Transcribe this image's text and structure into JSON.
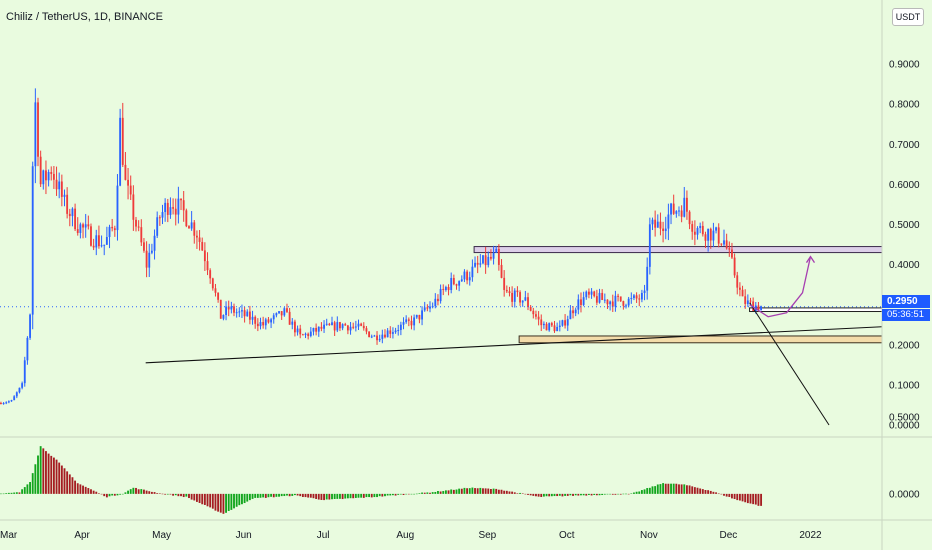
{
  "symbol_title": "Chiliz / TetherUS, 1D, BINANCE",
  "currency": "USDT",
  "colors": {
    "background": "#e9fbdf",
    "up": "#2962ff",
    "down": "#ef3a3a",
    "hist_up": "#12a51d",
    "hist_down": "#a51d22",
    "price_tag": "#1e5bff",
    "zone_pink": "#dccfe8",
    "zone_tan": "#f3dcaa",
    "projection": "#a63fb0"
  },
  "chart_data": [
    {
      "type": "candlestick",
      "y_ticks": [
        "0.9000",
        "0.8000",
        "0.7000",
        "0.6000",
        "0.5000",
        "0.4000",
        "0.2000",
        "0.1000",
        "0.0000"
      ],
      "x_ticks": [
        "Mar",
        "Apr",
        "May",
        "Jun",
        "Jul",
        "Aug",
        "Sep",
        "Oct",
        "Nov",
        "Dec",
        "2022"
      ],
      "ylim": [
        -0.03,
        1.06
      ],
      "xlim": [
        "2021-03-01",
        "2022-01-28"
      ],
      "last_price": "0.2950",
      "countdown": "05:36:51",
      "anchors": [
        [
          "2021-03-01",
          0.055
        ],
        [
          "2021-03-05",
          0.06
        ],
        [
          "2021-03-09",
          0.1
        ],
        [
          "2021-03-11",
          0.22
        ],
        [
          "2021-03-12",
          0.28
        ],
        [
          "2021-03-13",
          0.65
        ],
        [
          "2021-03-14",
          0.8
        ],
        [
          "2021-03-16",
          0.6
        ],
        [
          "2021-03-20",
          0.64
        ],
        [
          "2021-03-25",
          0.55
        ],
        [
          "2021-03-30",
          0.5
        ],
        [
          "2021-04-04",
          0.47
        ],
        [
          "2021-04-09",
          0.45
        ],
        [
          "2021-04-13",
          0.5
        ],
        [
          "2021-04-15",
          0.75
        ],
        [
          "2021-04-17",
          0.6
        ],
        [
          "2021-04-21",
          0.5
        ],
        [
          "2021-04-25",
          0.4
        ],
        [
          "2021-04-30",
          0.52
        ],
        [
          "2021-05-04",
          0.56
        ],
        [
          "2021-05-09",
          0.53
        ],
        [
          "2021-05-14",
          0.48
        ],
        [
          "2021-05-19",
          0.38
        ],
        [
          "2021-05-23",
          0.27
        ],
        [
          "2021-05-26",
          0.29
        ],
        [
          "2021-06-02",
          0.27
        ],
        [
          "2021-06-08",
          0.25
        ],
        [
          "2021-06-16",
          0.28
        ],
        [
          "2021-06-22",
          0.22
        ],
        [
          "2021-06-30",
          0.24
        ],
        [
          "2021-07-08",
          0.25
        ],
        [
          "2021-07-15",
          0.24
        ],
        [
          "2021-07-20",
          0.22
        ],
        [
          "2021-07-28",
          0.24
        ],
        [
          "2021-08-04",
          0.26
        ],
        [
          "2021-08-11",
          0.3
        ],
        [
          "2021-08-17",
          0.35
        ],
        [
          "2021-08-23",
          0.37
        ],
        [
          "2021-08-29",
          0.4
        ],
        [
          "2021-09-04",
          0.42
        ],
        [
          "2021-09-07",
          0.33
        ],
        [
          "2021-09-15",
          0.31
        ],
        [
          "2021-09-21",
          0.25
        ],
        [
          "2021-09-28",
          0.24
        ],
        [
          "2021-10-04",
          0.3
        ],
        [
          "2021-10-08",
          0.32
        ],
        [
          "2021-10-16",
          0.31
        ],
        [
          "2021-10-25",
          0.31
        ],
        [
          "2021-10-30",
          0.32
        ],
        [
          "2021-11-01",
          0.49
        ],
        [
          "2021-11-05",
          0.5
        ],
        [
          "2021-11-09",
          0.53
        ],
        [
          "2021-11-14",
          0.55
        ],
        [
          "2021-11-18",
          0.49
        ],
        [
          "2021-11-24",
          0.48
        ],
        [
          "2021-11-29",
          0.46
        ],
        [
          "2021-12-02",
          0.4
        ],
        [
          "2021-12-06",
          0.31
        ],
        [
          "2021-12-09",
          0.3
        ],
        [
          "2021-12-13",
          0.295
        ]
      ],
      "macd_hist_anchors": [
        [
          "2021-03-01",
          0.0
        ],
        [
          "2021-03-08",
          0.01
        ],
        [
          "2021-03-12",
          0.08
        ],
        [
          "2021-03-16",
          0.31
        ],
        [
          "2021-03-22",
          0.22
        ],
        [
          "2021-03-30",
          0.07
        ],
        [
          "2021-04-10",
          -0.02
        ],
        [
          "2021-04-16",
          0.0
        ],
        [
          "2021-04-20",
          0.04
        ],
        [
          "2021-05-01",
          0.0
        ],
        [
          "2021-05-10",
          -0.02
        ],
        [
          "2021-05-24",
          -0.13
        ],
        [
          "2021-06-04",
          -0.03
        ],
        [
          "2021-06-20",
          -0.01
        ],
        [
          "2021-07-01",
          -0.04
        ],
        [
          "2021-07-20",
          -0.02
        ],
        [
          "2021-08-10",
          0.01
        ],
        [
          "2021-08-25",
          0.04
        ],
        [
          "2021-09-05",
          0.03
        ],
        [
          "2021-09-20",
          -0.02
        ],
        [
          "2021-10-05",
          -0.01
        ],
        [
          "2021-10-25",
          0.0
        ],
        [
          "2021-11-06",
          0.07
        ],
        [
          "2021-11-14",
          0.06
        ],
        [
          "2021-11-24",
          0.02
        ],
        [
          "2021-12-04",
          -0.04
        ],
        [
          "2021-12-13",
          -0.08
        ]
      ],
      "macd_ylim": [
        -0.17,
        0.37
      ],
      "macd_y_ticks": [
        "0.5000",
        "0.0000"
      ],
      "annotations": {
        "resistance_zone": {
          "x0": "2021-08-27",
          "x1": "2022-01-28",
          "y0": 0.43,
          "y1": 0.445
        },
        "support_zone_upper": {
          "x0": "2021-12-09",
          "x1": "2022-01-28",
          "y0": 0.283,
          "y1": 0.292
        },
        "support_zone_lower": {
          "x0": "2021-09-13",
          "x1": "2022-01-28",
          "y0": 0.205,
          "y1": 0.222
        },
        "trendline": {
          "x0": "2021-04-25",
          "y0": 0.155,
          "x1": "2022-01-28",
          "y1": 0.245
        },
        "projection_path": [
          [
            "2021-12-09",
            0.3
          ],
          [
            "2021-12-16",
            0.27
          ],
          [
            "2021-12-23",
            0.28
          ],
          [
            "2021-12-29",
            0.33
          ],
          [
            "2022-01-01",
            0.42
          ]
        ],
        "projection_down": {
          "x0": "2021-12-09",
          "y0": 0.305,
          "x1": "2022-01-08",
          "y1": 0.0
        }
      }
    }
  ]
}
